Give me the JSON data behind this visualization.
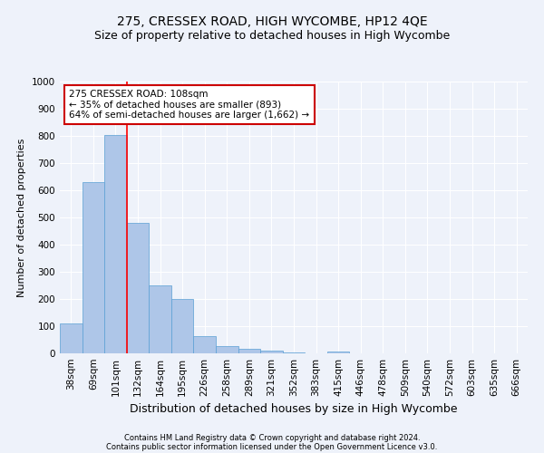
{
  "title": "275, CRESSEX ROAD, HIGH WYCOMBE, HP12 4QE",
  "subtitle": "Size of property relative to detached houses in High Wycombe",
  "xlabel": "Distribution of detached houses by size in High Wycombe",
  "ylabel": "Number of detached properties",
  "footer_line1": "Contains HM Land Registry data © Crown copyright and database right 2024.",
  "footer_line2": "Contains public sector information licensed under the Open Government Licence v3.0.",
  "bar_labels": [
    "38sqm",
    "69sqm",
    "101sqm",
    "132sqm",
    "164sqm",
    "195sqm",
    "226sqm",
    "258sqm",
    "289sqm",
    "321sqm",
    "352sqm",
    "383sqm",
    "415sqm",
    "446sqm",
    "478sqm",
    "509sqm",
    "540sqm",
    "572sqm",
    "603sqm",
    "635sqm",
    "666sqm"
  ],
  "bar_values": [
    110,
    630,
    805,
    480,
    250,
    200,
    65,
    28,
    18,
    10,
    5,
    1,
    8,
    0,
    0,
    0,
    0,
    0,
    0,
    0,
    0
  ],
  "bar_color": "#aec6e8",
  "bar_edge_color": "#5a9fd4",
  "red_line_index": 2,
  "annotation_title": "275 CRESSEX ROAD: 108sqm",
  "annotation_line1": "← 35% of detached houses are smaller (893)",
  "annotation_line2": "64% of semi-detached houses are larger (1,662) →",
  "annotation_box_color": "#ffffff",
  "annotation_border_color": "#cc0000",
  "ylim": [
    0,
    1000
  ],
  "yticks": [
    0,
    100,
    200,
    300,
    400,
    500,
    600,
    700,
    800,
    900,
    1000
  ],
  "background_color": "#eef2fa",
  "plot_background": "#eef2fa",
  "grid_color": "#ffffff",
  "title_fontsize": 10,
  "subtitle_fontsize": 9,
  "xlabel_fontsize": 9,
  "ylabel_fontsize": 8,
  "tick_fontsize": 7.5,
  "footer_fontsize": 6,
  "annotation_fontsize": 7.5
}
